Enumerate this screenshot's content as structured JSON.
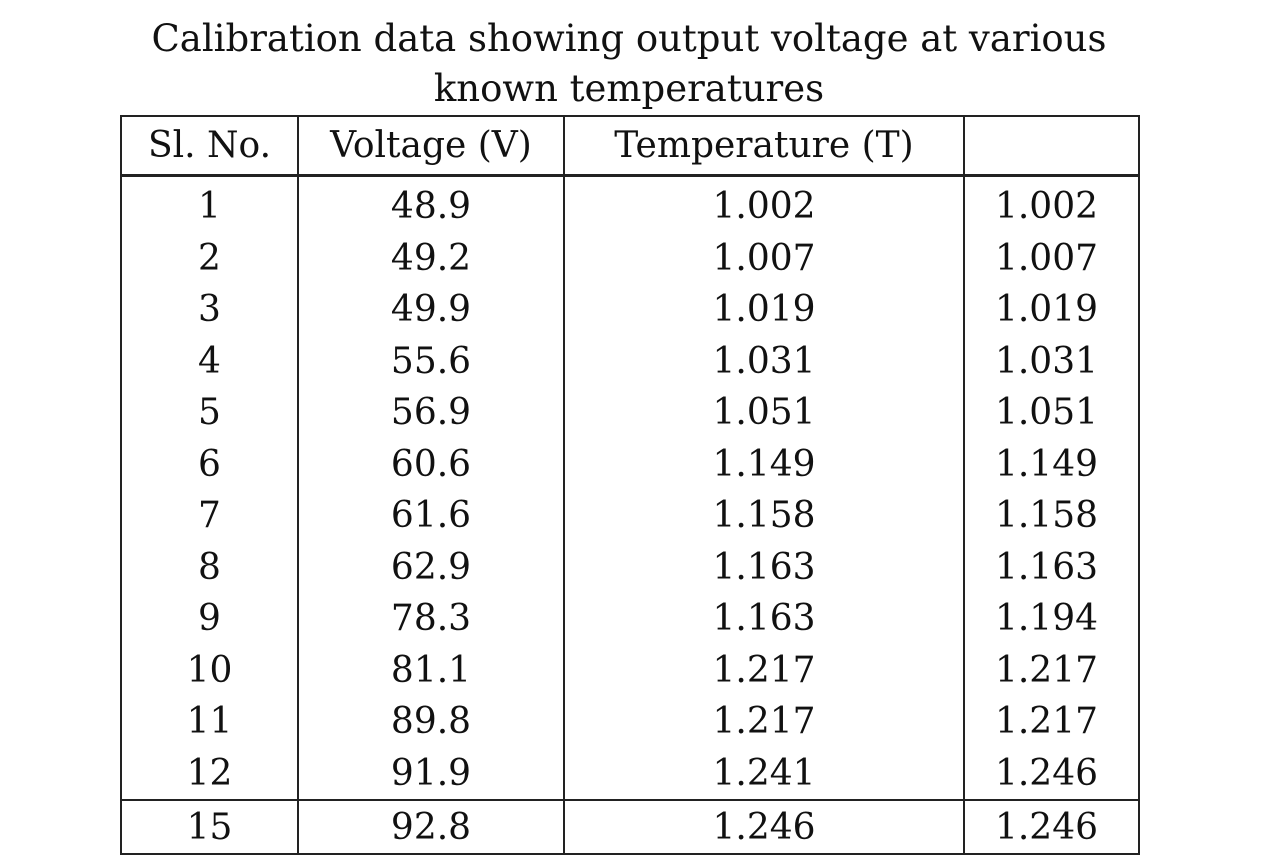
{
  "caption": {
    "line1": "Calibration data showing output voltage at various",
    "line2": "known temperatures"
  },
  "table": {
    "headers": [
      "Sl. No.",
      "Voltage (V)",
      "Temperature (T)",
      ""
    ],
    "rows": [
      [
        "1",
        "48.9",
        "1.002",
        "1.002"
      ],
      [
        "2",
        "49.2",
        "1.007",
        "1.007"
      ],
      [
        "3",
        "49.9",
        "1.019",
        "1.019"
      ],
      [
        "4",
        "55.6",
        "1.031",
        "1.031"
      ],
      [
        "5",
        "56.9",
        "1.051",
        "1.051"
      ],
      [
        "6",
        "60.6",
        "1.149",
        "1.149"
      ],
      [
        "7",
        "61.6",
        "1.158",
        "1.158"
      ],
      [
        "8",
        "62.9",
        "1.163",
        "1.163"
      ],
      [
        "9",
        "78.3",
        "1.163",
        "1.194"
      ],
      [
        "10",
        "81.1",
        "1.217",
        "1.217"
      ],
      [
        "11",
        "89.8",
        "1.217",
        "1.217"
      ],
      [
        "12",
        "91.9",
        "1.241",
        "1.246"
      ]
    ],
    "footer_row": [
      "15",
      "92.8",
      "1.246",
      "1.246"
    ]
  }
}
